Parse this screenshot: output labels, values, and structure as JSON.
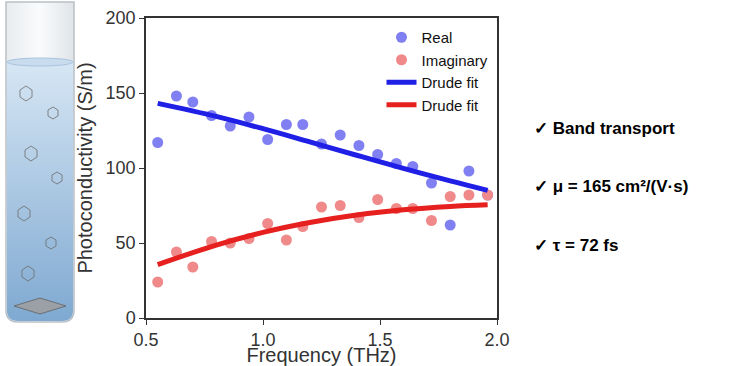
{
  "chart_data": {
    "type": "scatter",
    "x_label": "Frequency (THz)",
    "y_label": "Photoconductivity (S/m)",
    "xlim": [
      0.5,
      2.0
    ],
    "xticks": [
      0.5,
      {
        "value": 1,
        "label": "1.0"
      },
      1.5,
      {
        "value": 2,
        "label": "2.0"
      }
    ],
    "ylim": [
      0,
      200
    ],
    "yticks": [
      0,
      50,
      100,
      150,
      200
    ],
    "grid": false,
    "legend": "top right",
    "series": [
      {
        "name": "Real",
        "type": "scatter",
        "marker": "circle",
        "color": "#8080f2",
        "x": [
          0.55,
          0.63,
          0.7,
          0.78,
          0.86,
          0.94,
          1.02,
          1.1,
          1.17,
          1.25,
          1.33,
          1.41,
          1.49,
          1.57,
          1.64,
          1.72,
          1.8,
          1.88,
          1.96
        ],
        "values": [
          117,
          148,
          144,
          135,
          128,
          134,
          119,
          129,
          129,
          116,
          122,
          115,
          109,
          103,
          101,
          90,
          62,
          98,
          82
        ]
      },
      {
        "name": "Imaginary",
        "type": "scatter",
        "marker": "circle",
        "color": "#f08a8a",
        "x": [
          0.55,
          0.63,
          0.7,
          0.78,
          0.86,
          0.94,
          1.02,
          1.1,
          1.17,
          1.25,
          1.33,
          1.41,
          1.49,
          1.57,
          1.64,
          1.72,
          1.8,
          1.88,
          1.96
        ],
        "values": [
          24,
          44,
          34,
          51,
          50,
          53,
          63,
          52,
          61,
          74,
          75,
          67,
          79,
          73,
          73,
          65,
          81,
          82,
          82
        ]
      },
      {
        "name": "Drude fit",
        "type": "line",
        "line_style": "solid",
        "color": "#1f1fe6",
        "x": [
          0.55,
          0.8,
          1.0,
          1.2,
          1.4,
          1.6,
          1.8,
          1.96
        ],
        "values": [
          143.1,
          134.4,
          126.2,
          117.4,
          108.5,
          99.7,
          91.4,
          85.1
        ]
      },
      {
        "name": "Drude fit",
        "type": "line",
        "line_style": "solid",
        "color": "#e61f1f",
        "x": [
          0.55,
          0.8,
          1.0,
          1.2,
          1.4,
          1.6,
          1.8,
          1.96
        ],
        "values": [
          35.6,
          48.6,
          57.1,
          63.7,
          68.7,
          72.2,
          74.4,
          75.5
        ]
      }
    ],
    "annotations": [
      "✓ Band transport",
      "✓ μ = 165 cm²/(V·s)",
      "✓ τ = 72 fs"
    ]
  }
}
